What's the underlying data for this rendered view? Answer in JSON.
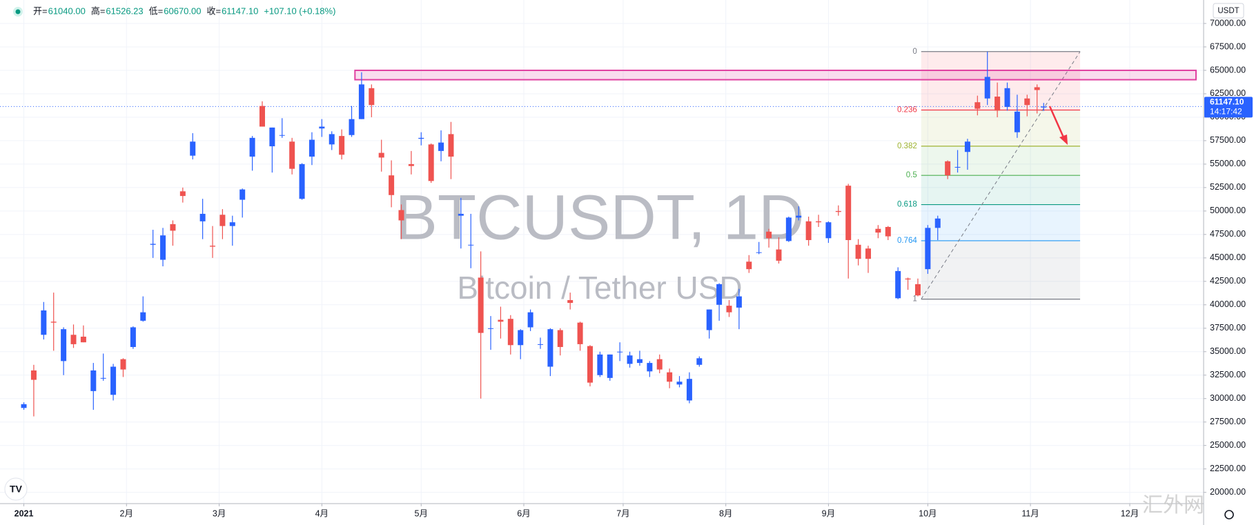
{
  "header": {
    "fields": [
      {
        "label": "开=",
        "value": "61040.00"
      },
      {
        "label": "高=",
        "value": "61526.23"
      },
      {
        "label": "低=",
        "value": "60670.00"
      },
      {
        "label": "收=",
        "value": "61147.10"
      }
    ],
    "change": "+107.10 (+0.18%)"
  },
  "watermark": {
    "symbol": "BTCUSDT, 1D",
    "description": "Bitcoin / Tether USD"
  },
  "currency_button": "USDT",
  "site_mark": "汇外网",
  "chart_data": {
    "type": "candlestick",
    "x": [
      0,
      3,
      6,
      9,
      12,
      15,
      18,
      21,
      24,
      27,
      30,
      33,
      36,
      39,
      42,
      45,
      48,
      51,
      54,
      57,
      60,
      63,
      66,
      69,
      72,
      75,
      78,
      81,
      84,
      87,
      90,
      93,
      96,
      99,
      102,
      105,
      108,
      111,
      114,
      117,
      120,
      123,
      126,
      129,
      132,
      135,
      138,
      141,
      144,
      147,
      150,
      153,
      156,
      159,
      162,
      165,
      168,
      171,
      174,
      177,
      180,
      183,
      186,
      189,
      192,
      195,
      198,
      201,
      204,
      207,
      210,
      213,
      216,
      219,
      222,
      225,
      228,
      231,
      234,
      237,
      240,
      243,
      246,
      249,
      252,
      255,
      258,
      261,
      264,
      267,
      270,
      273,
      276,
      279,
      282,
      285,
      288,
      291,
      294,
      297,
      300,
      303,
      306,
      308
    ],
    "open": [
      29000,
      33000,
      36800,
      38200,
      34000,
      36800,
      36600,
      30800,
      32200,
      30400,
      34200,
      35500,
      38300,
      46400,
      44800,
      48600,
      52100,
      55900,
      48900,
      46300,
      49600,
      48400,
      51200,
      55800,
      61200,
      56900,
      58100,
      57400,
      51300,
      55800,
      58800,
      57100,
      58000,
      58100,
      59800,
      63100,
      56200,
      53800,
      50100,
      55000,
      57700,
      57100,
      56400,
      58200,
      49500,
      46400,
      42900,
      37500,
      38400,
      38500,
      35700,
      37600,
      35800,
      33400,
      37300,
      40500,
      38100,
      35600,
      32500,
      32200,
      35000,
      33700,
      33800,
      32900,
      34200,
      32800,
      31500,
      29800,
      33600,
      37300,
      40000,
      39900,
      39700,
      44600,
      45600,
      47800,
      45900,
      46800,
      49300,
      48900,
      48900,
      47100,
      50000,
      52700,
      46400,
      46000,
      48100,
      48300,
      40700,
      42800,
      42200,
      43800,
      48200,
      55300,
      54700,
      56300,
      61600,
      62000,
      62200,
      61100,
      58400,
      62000,
      63200,
      61040
    ],
    "high": [
      29600,
      33600,
      40300,
      41300,
      37600,
      37900,
      37800,
      33800,
      34800,
      33700,
      34300,
      37700,
      40900,
      48000,
      48200,
      49000,
      52500,
      58300,
      51300,
      48400,
      50200,
      49500,
      52400,
      58000,
      61700,
      58900,
      59900,
      57800,
      55100,
      58400,
      59800,
      58500,
      58700,
      61200,
      64800,
      63500,
      57600,
      55400,
      50700,
      56400,
      58400,
      57200,
      58600,
      59500,
      51400,
      49700,
      45700,
      38800,
      39800,
      38900,
      37400,
      39500,
      36500,
      37500,
      37500,
      41300,
      38200,
      35700,
      35000,
      34700,
      36000,
      35000,
      35100,
      34000,
      34700,
      33200,
      32400,
      32800,
      34500,
      39500,
      42300,
      40500,
      41700,
      45300,
      46700,
      48100,
      47200,
      49400,
      50500,
      49400,
      49600,
      48900,
      50600,
      52900,
      47000,
      46300,
      48500,
      48400,
      44000,
      42900,
      42800,
      48500,
      49500,
      55400,
      56500,
      57700,
      62300,
      67000,
      63700,
      63700,
      62400,
      62400,
      63500,
      61526.23
    ],
    "low": [
      28800,
      28100,
      36300,
      35100,
      32500,
      35400,
      36000,
      28800,
      31900,
      29800,
      32300,
      35300,
      38200,
      45000,
      44100,
      46300,
      50900,
      55500,
      47000,
      45000,
      47000,
      46300,
      49300,
      54300,
      59000,
      54100,
      57800,
      53900,
      51200,
      54900,
      57900,
      56500,
      55500,
      57900,
      59800,
      60000,
      54200,
      50400,
      47000,
      53900,
      57000,
      53000,
      55300,
      53400,
      46000,
      43900,
      30000,
      35200,
      36400,
      34700,
      34200,
      37200,
      35300,
      32400,
      34600,
      39500,
      35100,
      31300,
      32300,
      31900,
      34000,
      33300,
      33500,
      32300,
      32700,
      31100,
      31200,
      29500,
      33400,
      36400,
      38300,
      38700,
      37400,
      43400,
      45400,
      46100,
      44400,
      46700,
      49000,
      46300,
      48300,
      46600,
      49500,
      42800,
      44200,
      43400,
      47100,
      46900,
      40600,
      41600,
      40900,
      43300,
      46900,
      53400,
      54100,
      54400,
      60200,
      61300,
      60000,
      60700,
      57800,
      60100,
      60400,
      60670
    ],
    "close": [
      29400,
      32000,
      39400,
      38100,
      37400,
      35800,
      36000,
      33000,
      32200,
      33400,
      33100,
      37600,
      39200,
      46500,
      47400,
      47900,
      51600,
      57400,
      49700,
      46200,
      48400,
      48800,
      52300,
      57800,
      59000,
      58900,
      58100,
      54500,
      55000,
      57600,
      59000,
      58200,
      56000,
      59800,
      63500,
      61300,
      55700,
      51700,
      49000,
      54800,
      57800,
      53200,
      57300,
      55800,
      49700,
      46400,
      37000,
      37500,
      38200,
      35700,
      37300,
      39200,
      35800,
      37400,
      35500,
      40200,
      35800,
      31700,
      34700,
      34700,
      35000,
      34600,
      34200,
      33800,
      33100,
      31800,
      31800,
      32100,
      34300,
      39500,
      42200,
      39200,
      40900,
      43800,
      45600,
      47100,
      44700,
      49300,
      49500,
      46900,
      48800,
      48800,
      49900,
      46900,
      44900,
      44900,
      47700,
      47300,
      43600,
      42700,
      41000,
      48200,
      49200,
      53800,
      54700,
      57400,
      60900,
      64300,
      60700,
      63100,
      60600,
      61300,
      62900,
      61147.1
    ],
    "up_color": "#2962ff",
    "down_color": "#ef5350",
    "xlim": [
      -7.2,
      356.3
    ],
    "xticks": [
      {
        "value": 0,
        "label": "2021"
      },
      {
        "value": 31,
        "label": "2月"
      },
      {
        "value": 59,
        "label": "3月"
      },
      {
        "value": 90,
        "label": "4月"
      },
      {
        "value": 120,
        "label": "5月"
      },
      {
        "value": 151,
        "label": "6月"
      },
      {
        "value": 181,
        "label": "7月"
      },
      {
        "value": 212,
        "label": "8月"
      },
      {
        "value": 243,
        "label": "9月"
      },
      {
        "value": 273,
        "label": "10月"
      },
      {
        "value": 304,
        "label": "11月"
      },
      {
        "value": 334,
        "label": "12月"
      }
    ],
    "ylim": [
      18800,
      72500
    ],
    "yticks": [
      {
        "value": 70000,
        "label": "70000.00"
      },
      {
        "value": 67500,
        "label": "67500.00"
      },
      {
        "value": 65000,
        "label": "65000.00"
      },
      {
        "value": 62500,
        "label": "62500.00"
      },
      {
        "value": 60000,
        "label": "60000.00"
      },
      {
        "value": 57500,
        "label": "57500.00"
      },
      {
        "value": 55000,
        "label": "55000.00"
      },
      {
        "value": 52500,
        "label": "52500.00"
      },
      {
        "value": 50000,
        "label": "50000.00"
      },
      {
        "value": 47500,
        "label": "47500.00"
      },
      {
        "value": 45000,
        "label": "45000.00"
      },
      {
        "value": 42500,
        "label": "42500.00"
      },
      {
        "value": 40000,
        "label": "40000.00"
      },
      {
        "value": 37500,
        "label": "37500.00"
      },
      {
        "value": 35000,
        "label": "35000.00"
      },
      {
        "value": 32500,
        "label": "32500.00"
      },
      {
        "value": 30000,
        "label": "30000.00"
      },
      {
        "value": 27500,
        "label": "27500.00"
      },
      {
        "value": 25000,
        "label": "25000.00"
      },
      {
        "value": 22500,
        "label": "22500.00"
      },
      {
        "value": 20000,
        "label": "20000.00"
      }
    ],
    "grid": true,
    "last_price": {
      "value": 61147.1,
      "label": "61147.10",
      "countdown": "14:17:42",
      "color": "#2962ff"
    },
    "resistance_zone": {
      "low": 64000,
      "high": 65000,
      "x_start": 100,
      "x_end": 354,
      "color": "#e040a0"
    },
    "fib": {
      "high": 67000,
      "low": 40600,
      "x_start": 271,
      "x_end": 319,
      "levels": [
        0,
        0.236,
        0.382,
        0.5,
        0.618,
        0.764,
        1
      ],
      "colors": [
        "#787b86",
        "#f23645",
        "#9db22f",
        "#4caf50",
        "#089981",
        "#2196f3",
        "#787b86"
      ]
    }
  }
}
